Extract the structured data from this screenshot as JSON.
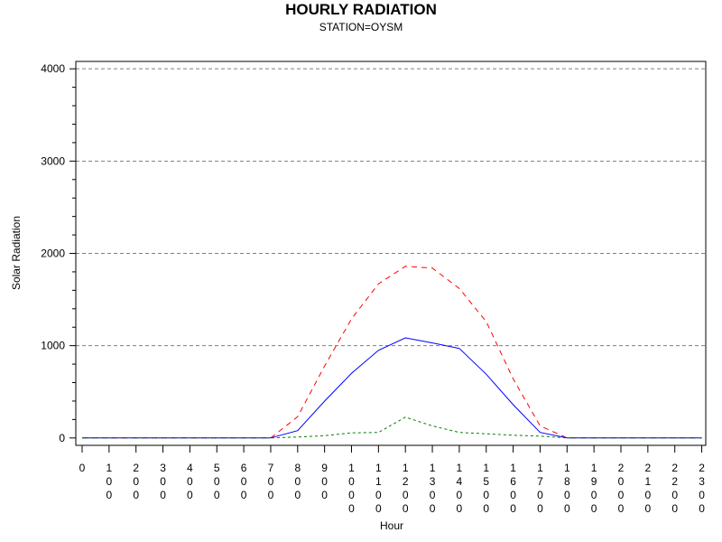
{
  "chart_data": {
    "type": "line",
    "title": "HOURLY RADIATION",
    "subtitle": "STATION=OYSM",
    "xlabel": "Hour",
    "ylabel": "Solar Radiation",
    "x": [
      0,
      100,
      200,
      300,
      400,
      500,
      600,
      700,
      800,
      900,
      1000,
      1100,
      1200,
      1300,
      1400,
      1500,
      1600,
      1700,
      1800,
      1900,
      2000,
      2100,
      2200,
      2300
    ],
    "x_tick_labels": [
      "0",
      "100",
      "200",
      "300",
      "400",
      "500",
      "600",
      "700",
      "800",
      "900",
      "1000",
      "1100",
      "1200",
      "1300",
      "1400",
      "1500",
      "1600",
      "1700",
      "1800",
      "1900",
      "2000",
      "2100",
      "2200",
      "2300"
    ],
    "y_ticks": [
      0,
      1000,
      2000,
      3000,
      4000
    ],
    "ylim": [
      -80,
      4080
    ],
    "grid": "horizontal dashed at major y ticks",
    "series": [
      {
        "color": "#ff0000",
        "dash": "dashed",
        "values": [
          0,
          0,
          0,
          0,
          0,
          0,
          0,
          0,
          230,
          780,
          1290,
          1670,
          1860,
          1840,
          1620,
          1260,
          640,
          130,
          0,
          0,
          0,
          0,
          0,
          0
        ]
      },
      {
        "color": "#0000ff",
        "dash": "solid",
        "values": [
          0,
          0,
          0,
          0,
          0,
          0,
          0,
          0,
          80,
          400,
          700,
          950,
          1085,
          1030,
          970,
          690,
          360,
          60,
          0,
          0,
          0,
          0,
          0,
          0
        ]
      },
      {
        "color": "#008000",
        "dash": "short-dashed",
        "values": [
          0,
          0,
          0,
          0,
          0,
          0,
          0,
          0,
          10,
          25,
          55,
          60,
          225,
          130,
          60,
          45,
          30,
          20,
          0,
          0,
          0,
          0,
          0,
          0
        ]
      }
    ]
  }
}
